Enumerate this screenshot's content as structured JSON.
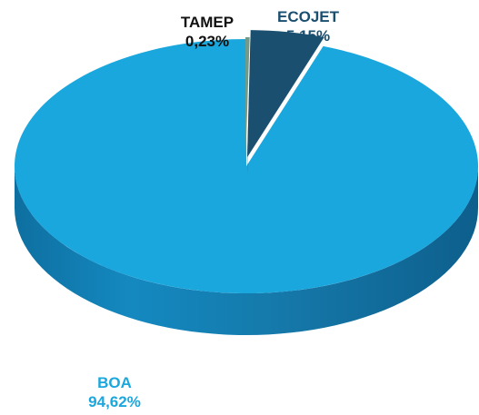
{
  "chart_data": {
    "type": "pie",
    "three_d": true,
    "slices": [
      {
        "name": "BOA",
        "value": 94.62,
        "value_label": "94,62%",
        "color": "#1aa7dd"
      },
      {
        "name": "ECOJET",
        "value": 5.15,
        "value_label": "5,15%",
        "color": "#1b4f70"
      },
      {
        "name": "TAMEP",
        "value": 0.23,
        "value_label": "0,23%",
        "color": "#6f9a8c"
      }
    ],
    "label_colors": {
      "BOA": "#1aa7dd",
      "ECOJET": "#1b4f70",
      "TAMEP": "#111111"
    },
    "legend": "none"
  }
}
